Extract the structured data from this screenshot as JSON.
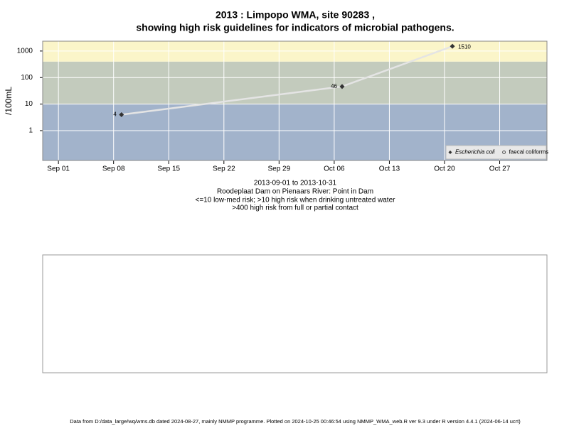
{
  "chart_data": {
    "type": "line",
    "title": [
      "2013 : Limpopo WMA, site 90283 ,",
      "showing high risk guidelines for indicators of microbial pathogens."
    ],
    "y_label": "/100mL",
    "subtitle": [
      "2013-09-01 to 2013-10-31",
      "Roodeplaat Dam on Pienaars River: Point in Dam",
      "<=10 low-med risk; >10 high risk when drinking untreated water",
      ">400 high risk from full or partial contact"
    ],
    "footer": "Data from D:/data_large/wq/wms.db dated 2024-08-27, mainly NMMP programme. Plotted on 2024-10-25 00:46:54 using NMMP_WMA_web.R ver 9.3 under R version 4.4.1 (2024-06-14 ucrt)",
    "x": [
      "2013-09-09",
      "2013-10-07",
      "2013-10-21"
    ],
    "series": [
      {
        "name": "Escherichia coli",
        "color": "#333333",
        "line_color": "#e4e4e4",
        "marker": "diamond",
        "values": [
          4,
          46,
          1510
        ],
        "value_labels": [
          "4",
          "46",
          "1510"
        ]
      },
      {
        "name": "faecal coliforms",
        "color": "#555555",
        "line_color": "#e4e4e4",
        "marker": "circle",
        "values": [
          null,
          null,
          null
        ]
      }
    ],
    "xlim": [
      "2013-08-30",
      "2013-11-02"
    ],
    "xticks": [
      {
        "value": "2013-09-01",
        "label": "Sep 01"
      },
      {
        "value": "2013-09-08",
        "label": "Sep 08"
      },
      {
        "value": "2013-09-15",
        "label": "Sep 15"
      },
      {
        "value": "2013-09-22",
        "label": "Sep 22"
      },
      {
        "value": "2013-09-29",
        "label": "Sep 29"
      },
      {
        "value": "2013-10-06",
        "label": "Oct 06"
      },
      {
        "value": "2013-10-13",
        "label": "Oct 13"
      },
      {
        "value": "2013-10-20",
        "label": "Oct 20"
      },
      {
        "value": "2013-10-27",
        "label": "Oct 27"
      }
    ],
    "ylim": [
      0.075,
      2350
    ],
    "yticks": [
      1,
      10,
      100,
      1000
    ],
    "log_y": true,
    "grid": true,
    "guidelines": [
      10,
      400
    ],
    "band_colors": [
      "#a2b3cb",
      "#c3cbbd",
      "#fbf5c9"
    ],
    "legend": "bottom right"
  }
}
